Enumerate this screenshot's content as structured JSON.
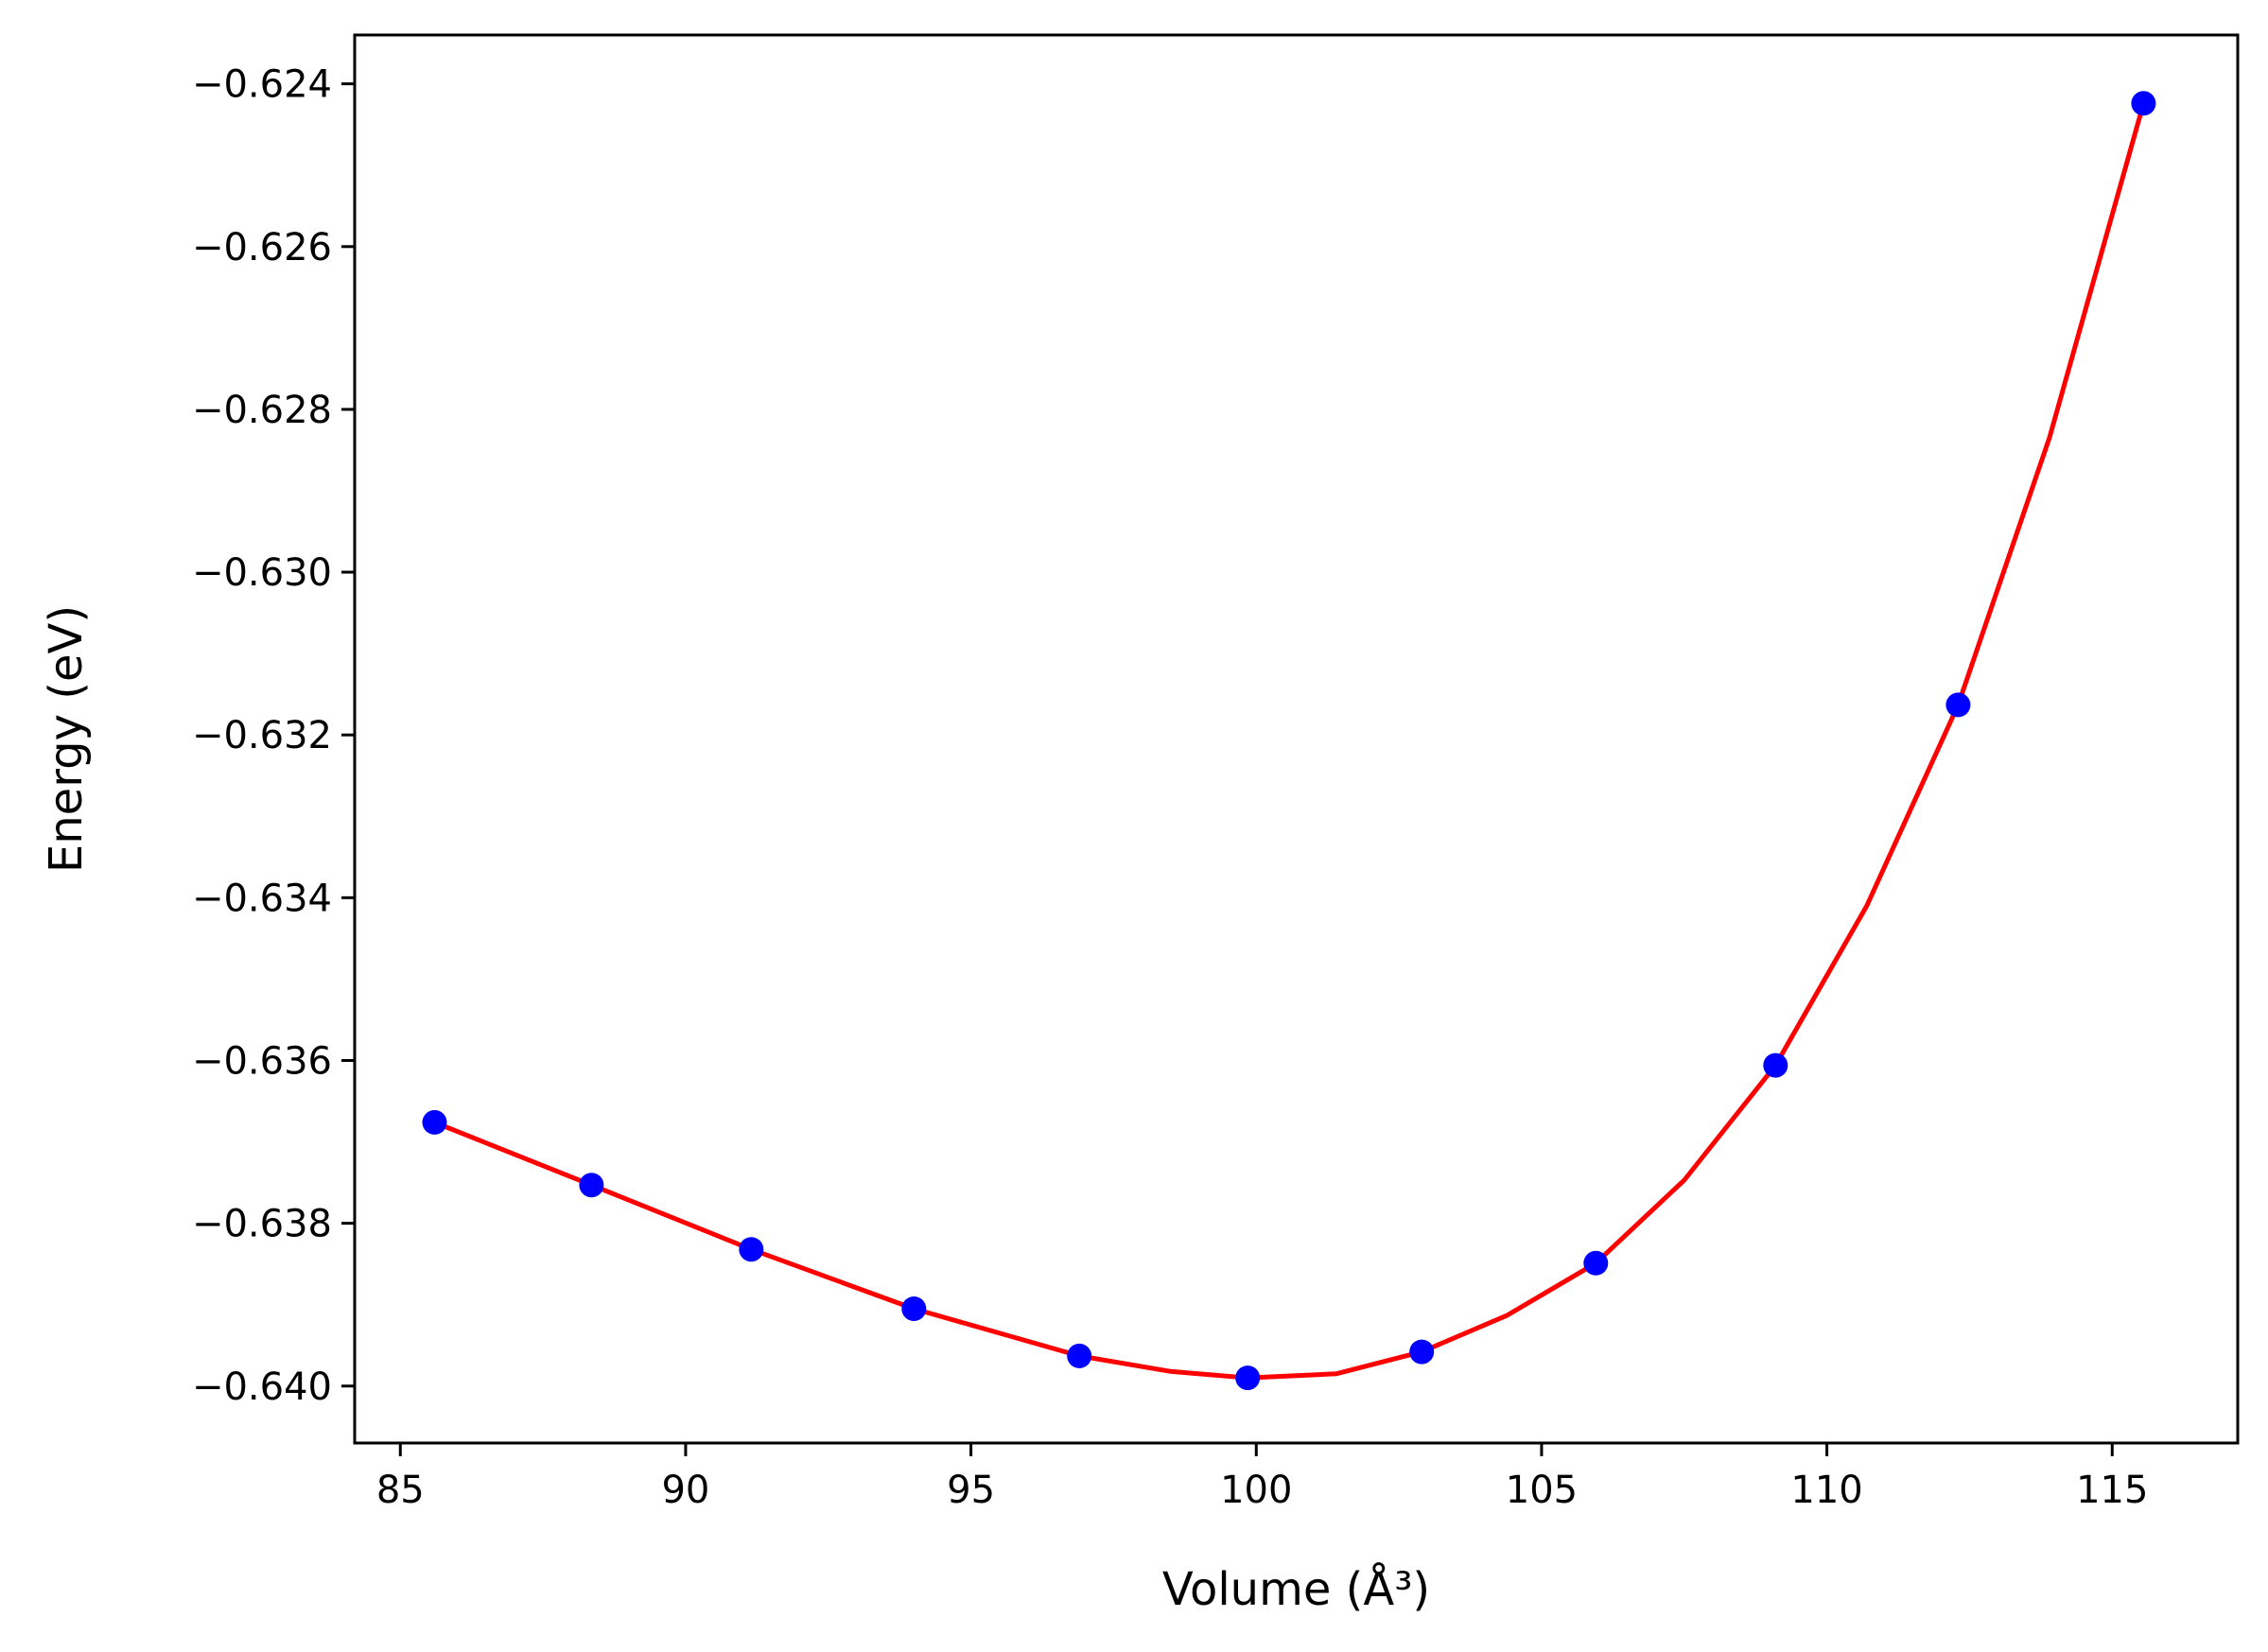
{
  "chart_data": {
    "type": "line",
    "xlabel": "Volume (Å³)",
    "ylabel": "Energy (eV)",
    "xlim": [
      84.2,
      117.2
    ],
    "ylim": [
      -0.6407,
      -0.6234
    ],
    "xticks": [
      85,
      90,
      95,
      100,
      105,
      110,
      115
    ],
    "xtick_labels": [
      "85",
      "90",
      "95",
      "100",
      "105",
      "110",
      "115"
    ],
    "yticks": [
      -0.624,
      -0.626,
      -0.628,
      -0.63,
      -0.632,
      -0.634,
      -0.636,
      -0.638,
      -0.64
    ],
    "ytick_labels": [
      "−0.624",
      "−0.626",
      "−0.628",
      "−0.630",
      "−0.632",
      "−0.634",
      "−0.636",
      "−0.638",
      "−0.640"
    ],
    "grid": false,
    "series": [
      {
        "kind": "points",
        "color": "#0000ff",
        "x": [
          85.6,
          88.35,
          91.15,
          94.0,
          96.9,
          99.85,
          102.9,
          105.95,
          109.1,
          112.3,
          115.55
        ],
        "y": [
          -0.63676,
          -0.63753,
          -0.63832,
          -0.63905,
          -0.63963,
          -0.6399,
          -0.63958,
          -0.63849,
          -0.63606,
          -0.63163,
          -0.62424
        ]
      },
      {
        "kind": "fit_curve",
        "color": "#ff0000",
        "x": [
          85.6,
          88.35,
          91.15,
          94.0,
          96.9,
          98.5,
          99.85,
          101.4,
          102.9,
          104.4,
          105.95,
          107.5,
          109.1,
          110.7,
          112.3,
          113.9,
          115.55
        ],
        "y": [
          -0.63676,
          -0.63753,
          -0.63832,
          -0.63905,
          -0.63963,
          -0.63982,
          -0.6399,
          -0.63985,
          -0.63958,
          -0.63913,
          -0.63849,
          -0.63747,
          -0.63606,
          -0.6341,
          -0.63163,
          -0.62835,
          -0.62424
        ]
      }
    ]
  }
}
